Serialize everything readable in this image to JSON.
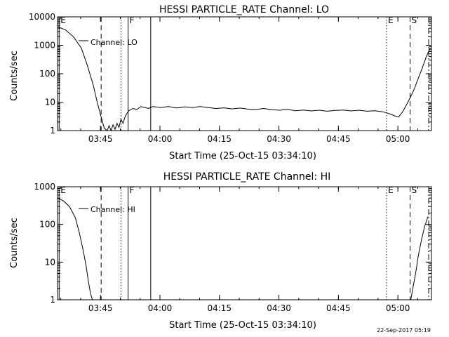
{
  "timestamp": "22-Sep-2017 05:19",
  "chart_data": [
    {
      "type": "line",
      "title": "HESSI PARTICLE_RATE Channel: LO",
      "xlabel": "Start Time (25-Oct-15 03:34:10)",
      "ylabel": "Counts/sec",
      "yscale": "log",
      "xlim_minutes_from_start": [
        0,
        94.3
      ],
      "ylim": [
        1,
        10000
      ],
      "x_ticks": [
        "03:45",
        "04:00",
        "04:15",
        "04:30",
        "04:45",
        "05:00"
      ],
      "y_ticks": [
        "1",
        "10",
        "100",
        "1000",
        "10000"
      ],
      "legend": "Channel: LO",
      "grid": false,
      "markers": [
        {
          "label": "E",
          "x": 0.4,
          "style": "solid"
        },
        {
          "label": "",
          "x": 11.0,
          "style": "dashed"
        },
        {
          "label": "",
          "x": 16.0,
          "style": "dotted"
        },
        {
          "label": "F",
          "x": 17.8,
          "style": "solid"
        },
        {
          "label": "",
          "x": 23.5,
          "style": "solid"
        },
        {
          "label": "E",
          "x": 83.0,
          "style": "dotted"
        },
        {
          "label": "S",
          "x": 88.9,
          "style": "dashed"
        },
        {
          "label": "",
          "x": 93.6,
          "style": "dashdot"
        }
      ],
      "series": [
        {
          "x": [
            0,
            2,
            4,
            6,
            7.5,
            9,
            10,
            11,
            11.8,
            12.5,
            13,
            13.5,
            14,
            14.5,
            15,
            15.5,
            16,
            16.5,
            17,
            17.5,
            18,
            19,
            20,
            21,
            22,
            23,
            24,
            26,
            28,
            30,
            32,
            34,
            36,
            38,
            40,
            42,
            44,
            46,
            48,
            50,
            52,
            54,
            56,
            58,
            60,
            62,
            64,
            66,
            68,
            70,
            72,
            74,
            76,
            78,
            80,
            82,
            83,
            84,
            85,
            86,
            87,
            88,
            89,
            90,
            91,
            92,
            93,
            94
          ],
          "y": [
            4500,
            3500,
            2000,
            800,
            200,
            40,
            10,
            3,
            1.2,
            1,
            1.5,
            1,
            1.6,
            1.1,
            1.8,
            1.3,
            2.5,
            1.8,
            3,
            4,
            5,
            6,
            5.5,
            7,
            6.5,
            6,
            7,
            6.5,
            7,
            6.2,
            6.8,
            6.5,
            7,
            6.4,
            6,
            6.3,
            5.8,
            6.2,
            5.7,
            5.5,
            6,
            5.4,
            5.2,
            5.6,
            5,
            5.3,
            4.9,
            5.2,
            4.8,
            5.1,
            5.3,
            4.9,
            5.2,
            4.8,
            5.0,
            4.6,
            4.2,
            3.8,
            3.3,
            3,
            4.5,
            8,
            15,
            30,
            70,
            160,
            400,
            800
          ]
        }
      ]
    },
    {
      "type": "line",
      "title": "HESSI PARTICLE_RATE Channel: HI",
      "xlabel": "Start Time (25-Oct-15 03:34:10)",
      "ylabel": "Counts/sec",
      "yscale": "log",
      "xlim_minutes_from_start": [
        0,
        94.3
      ],
      "ylim": [
        1,
        1000
      ],
      "x_ticks": [
        "03:45",
        "04:00",
        "04:15",
        "04:30",
        "04:45",
        "05:00"
      ],
      "y_ticks": [
        "1",
        "10",
        "100",
        "1000"
      ],
      "legend": "Channel: HI",
      "grid": false,
      "markers": [
        {
          "label": "E",
          "x": 0.4,
          "style": "solid"
        },
        {
          "label": "",
          "x": 11.0,
          "style": "dashed"
        },
        {
          "label": "",
          "x": 16.0,
          "style": "dotted"
        },
        {
          "label": "F",
          "x": 17.8,
          "style": "solid"
        },
        {
          "label": "",
          "x": 23.5,
          "style": "solid"
        },
        {
          "label": "E",
          "x": 83.0,
          "style": "dotted"
        },
        {
          "label": "S",
          "x": 88.9,
          "style": "dashed"
        },
        {
          "label": "",
          "x": 93.6,
          "style": "dashdot"
        }
      ],
      "series": [
        {
          "x": [
            0,
            1.5,
            3,
            4.5,
            5.5,
            6.5,
            7.2,
            7.8,
            8.3,
            8.8,
            89.1,
            89.6,
            90.3,
            91,
            91.8,
            92.6,
            93.4
          ],
          "y": [
            500,
            420,
            300,
            150,
            60,
            20,
            8,
            3,
            1.5,
            1,
            1,
            2,
            5,
            15,
            40,
            90,
            160
          ]
        }
      ]
    }
  ]
}
